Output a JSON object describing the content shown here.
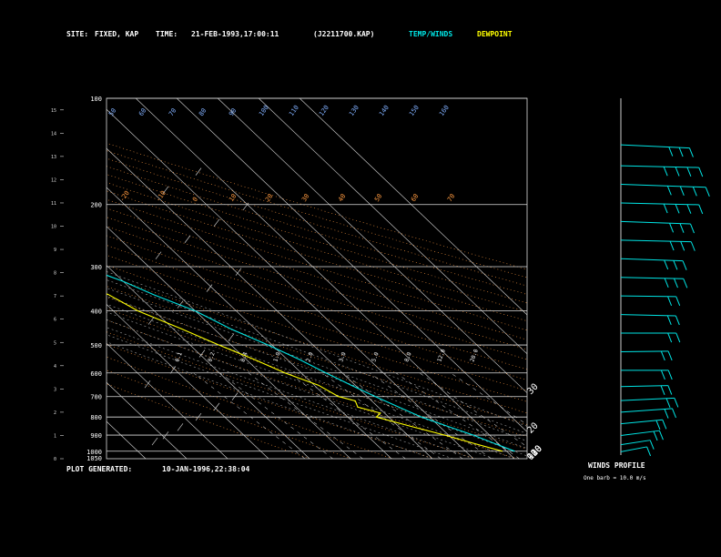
{
  "header": {
    "site_label": "SITE:",
    "site_value": "FIXED, KAP",
    "time_label": "TIME:",
    "time_value": "21-FEB-1993,17:00:11",
    "run_id": "(J2211700.KAP)",
    "temp_winds_label": "TEMP/WINDS",
    "dewpoint_label": "DEWPOINT"
  },
  "footer": {
    "plot_generated_label": "PLOT GENERATED:",
    "plot_generated_value": "10-JAN-1996,22:38:04"
  },
  "wind_profile": {
    "title": "WINDS PROFILE",
    "note": "One barb = 10.0 m/s"
  },
  "colors": {
    "background": "#000000",
    "temperature": "#00e5e5",
    "dewpoint": "#ffff00",
    "isotherms": "#d8d8d8",
    "dry_adiabats": "#ff9a40",
    "moist_adiabats": "#a0a0a0",
    "mixing_ratio": "#ffffff",
    "wind_barbs": "#00e5e5",
    "height_labels": "#80b0ff"
  },
  "chart_data": {
    "type": "line",
    "title": "",
    "xlabel": "",
    "ylabel": "",
    "grid": true,
    "legend": "top",
    "pressure_levels": [
      100,
      200,
      300,
      400,
      500,
      600,
      700,
      800,
      900,
      1000,
      1050
    ],
    "pressure_tick_labels": [
      "100",
      "200",
      "300",
      "400",
      "500",
      "600",
      "700",
      "800",
      "900",
      "1000",
      "1050"
    ],
    "height_ticks": [
      "15",
      "14",
      "13",
      "12",
      "11",
      "10",
      "9",
      "8",
      "7",
      "6",
      "5",
      "4",
      "3",
      "2",
      "1",
      "0"
    ],
    "isotherm_top_labels": [
      "-110",
      "-100",
      "-90",
      "-80",
      "-70",
      "-60",
      "-50",
      "-40"
    ],
    "isotherm_right_labels": [
      "-30",
      "-20",
      "-10",
      "0",
      "10",
      "20",
      "30"
    ],
    "dry_adiabat_labels_top": [
      "50",
      "60",
      "70",
      "80",
      "90",
      "100",
      "110",
      "120",
      "130",
      "140",
      "150",
      "160"
    ],
    "dry_adiabat_labels_mid": [
      "-20",
      "-10",
      "0",
      "10",
      "20",
      "30",
      "40",
      "50",
      "60",
      "70"
    ],
    "mixing_ratio_labels": [
      "0.1",
      "0.2",
      "0.4",
      "1.0",
      "2.0",
      "3.0",
      "5.0",
      "8.0",
      "12.0",
      "20.0"
    ],
    "series": [
      {
        "name": "TEMP/WINDS",
        "pressure": [
          100,
          120,
          150,
          180,
          200,
          230,
          260,
          300,
          330,
          360,
          400,
          450,
          500,
          550,
          600,
          650,
          700,
          750,
          800,
          850,
          900,
          950,
          1000
        ],
        "temperature": [
          -57,
          -61,
          -63,
          -60,
          -57,
          -53,
          -50,
          -46,
          -40,
          -36,
          -30,
          -26,
          -21,
          -17,
          -14,
          -11,
          -8,
          -5,
          -2,
          2,
          6,
          9,
          12
        ]
      },
      {
        "name": "DEWPOINT",
        "pressure": [
          100,
          120,
          150,
          180,
          200,
          230,
          260,
          300,
          330,
          360,
          400,
          450,
          500,
          550,
          600,
          650,
          700,
          720,
          750,
          780,
          800,
          850,
          900,
          950,
          1000
        ],
        "temperature": [
          -72,
          -76,
          -78,
          -74,
          -70,
          -66,
          -62,
          -56,
          -52,
          -47,
          -44,
          -38,
          -33,
          -28,
          -24,
          -19,
          -17,
          -14,
          -15,
          -11,
          -13,
          -7,
          -1,
          4,
          9
        ]
      }
    ],
    "winds": [
      {
        "height": 13.5,
        "speed": 30,
        "dir": 290
      },
      {
        "height": 12.6,
        "speed": 35,
        "dir": 280
      },
      {
        "height": 11.8,
        "speed": 40,
        "dir": 285
      },
      {
        "height": 11.0,
        "speed": 35,
        "dir": 280
      },
      {
        "height": 10.2,
        "speed": 30,
        "dir": 285
      },
      {
        "height": 9.4,
        "speed": 30,
        "dir": 280
      },
      {
        "height": 8.6,
        "speed": 25,
        "dir": 285
      },
      {
        "height": 7.8,
        "speed": 25,
        "dir": 280
      },
      {
        "height": 7.0,
        "speed": 20,
        "dir": 275
      },
      {
        "height": 6.2,
        "speed": 20,
        "dir": 280
      },
      {
        "height": 5.4,
        "speed": 20,
        "dir": 270
      },
      {
        "height": 4.6,
        "speed": 15,
        "dir": 265
      },
      {
        "height": 3.8,
        "speed": 15,
        "dir": 270
      },
      {
        "height": 3.1,
        "speed": 15,
        "dir": 260
      },
      {
        "height": 2.5,
        "speed": 20,
        "dir": 250
      },
      {
        "height": 2.0,
        "speed": 20,
        "dir": 240
      },
      {
        "height": 1.5,
        "speed": 15,
        "dir": 230
      },
      {
        "height": 1.0,
        "speed": 15,
        "dir": 220
      },
      {
        "height": 0.6,
        "speed": 10,
        "dir": 210
      },
      {
        "height": 0.3,
        "speed": 10,
        "dir": 200
      }
    ]
  }
}
